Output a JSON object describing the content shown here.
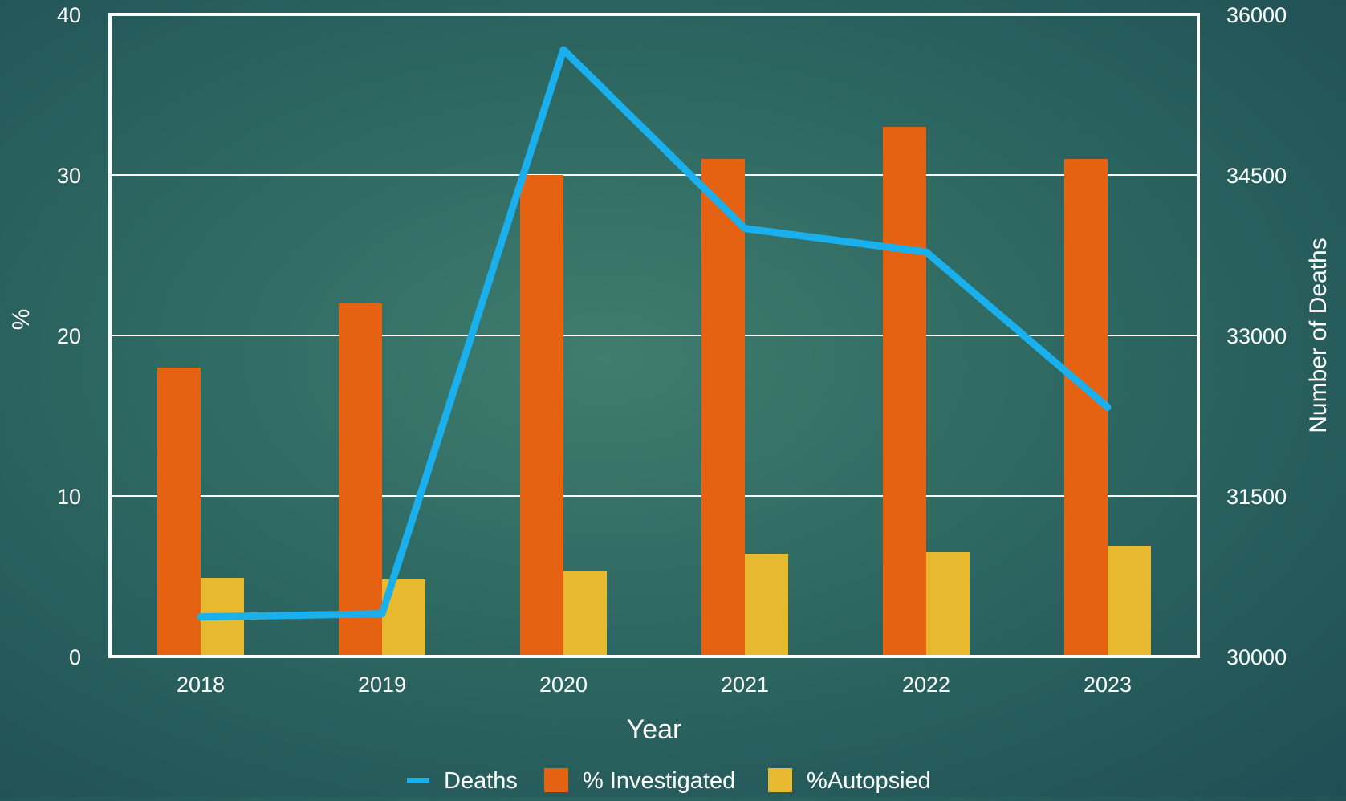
{
  "chart_data": {
    "type": "bar",
    "categories": [
      "2018",
      "2019",
      "2020",
      "2021",
      "2022",
      "2023"
    ],
    "series": [
      {
        "name": "% Investigated",
        "kind": "bar",
        "axis": "left",
        "color": "#e66213",
        "values": [
          18,
          22,
          30,
          31,
          33,
          31
        ]
      },
      {
        "name": "%Autopsied",
        "kind": "bar",
        "axis": "left",
        "color": "#e6b92e",
        "values": [
          4.9,
          4.8,
          5.3,
          6.4,
          6.5,
          6.9
        ]
      },
      {
        "name": "Deaths",
        "kind": "line",
        "axis": "right",
        "color": "#1ab0ee",
        "values": [
          30370,
          30400,
          35670,
          34000,
          33780,
          32330
        ]
      }
    ],
    "xlabel": "Year",
    "ylabel": "%",
    "y2label": "Number of Deaths",
    "ylim": [
      0,
      40
    ],
    "y2lim": [
      30000,
      36000
    ],
    "yticks": [
      "0",
      "10",
      "20",
      "30",
      "40"
    ],
    "y2ticks": [
      "30000",
      "31500",
      "33000",
      "34500",
      "36000"
    ],
    "grid": true,
    "legend_position": "bottom",
    "legend": [
      "Deaths",
      "% Investigated",
      "%Autopsied"
    ],
    "colors": {
      "plot_border": "#ffffff",
      "gridline": "#ffffff",
      "text": "#ffffff"
    }
  }
}
